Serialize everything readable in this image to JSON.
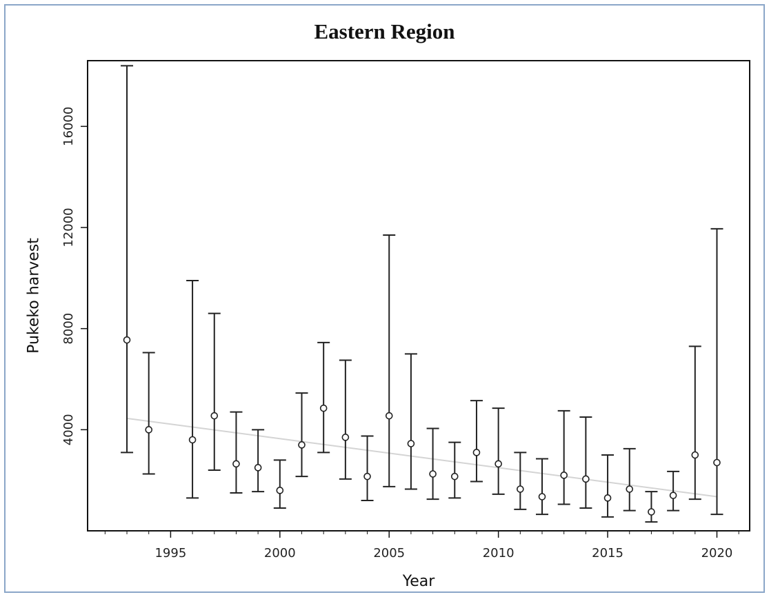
{
  "chart_data": {
    "type": "scatter",
    "title": "Eastern Region",
    "xlabel": "Year",
    "ylabel": "Pukeko harvest",
    "xlim": [
      1991.2,
      2021.5
    ],
    "ylim": [
      0,
      18600
    ],
    "x_ticks": [
      1995,
      2000,
      2005,
      2010,
      2015,
      2020
    ],
    "x_tick_labels": [
      "1995",
      "2000",
      "2005",
      "2010",
      "2015",
      "2020"
    ],
    "y_ticks": [
      4000,
      8000,
      12000,
      16000
    ],
    "y_tick_labels": [
      "4000",
      "8000",
      "12000",
      "16000"
    ],
    "grid": false,
    "series": [
      {
        "points": [
          {
            "x": 1993,
            "y": 7550,
            "low": 3100,
            "high": 18400
          },
          {
            "x": 1994,
            "y": 4000,
            "low": 2250,
            "high": 7050
          },
          {
            "x": 1996,
            "y": 3600,
            "low": 1300,
            "high": 9900
          },
          {
            "x": 1997,
            "y": 4550,
            "low": 2400,
            "high": 8600
          },
          {
            "x": 1998,
            "y": 2650,
            "low": 1500,
            "high": 4700
          },
          {
            "x": 1999,
            "y": 2500,
            "low": 1550,
            "high": 4000
          },
          {
            "x": 2000,
            "y": 1600,
            "low": 900,
            "high": 2800
          },
          {
            "x": 2001,
            "y": 3400,
            "low": 2150,
            "high": 5450
          },
          {
            "x": 2002,
            "y": 4850,
            "low": 3100,
            "high": 7450
          },
          {
            "x": 2003,
            "y": 3700,
            "low": 2050,
            "high": 6750
          },
          {
            "x": 2004,
            "y": 2150,
            "low": 1200,
            "high": 3750
          },
          {
            "x": 2005,
            "y": 4550,
            "low": 1750,
            "high": 11700
          },
          {
            "x": 2006,
            "y": 3450,
            "low": 1650,
            "high": 7000
          },
          {
            "x": 2007,
            "y": 2250,
            "low": 1250,
            "high": 4050
          },
          {
            "x": 2008,
            "y": 2150,
            "low": 1300,
            "high": 3500
          },
          {
            "x": 2009,
            "y": 3100,
            "low": 1950,
            "high": 5150
          },
          {
            "x": 2010,
            "y": 2650,
            "low": 1450,
            "high": 4850
          },
          {
            "x": 2011,
            "y": 1650,
            "low": 850,
            "high": 3100
          },
          {
            "x": 2012,
            "y": 1350,
            "low": 650,
            "high": 2850
          },
          {
            "x": 2013,
            "y": 2200,
            "low": 1050,
            "high": 4750
          },
          {
            "x": 2014,
            "y": 2050,
            "low": 900,
            "high": 4500
          },
          {
            "x": 2015,
            "y": 1300,
            "low": 550,
            "high": 3000
          },
          {
            "x": 2016,
            "y": 1650,
            "low": 800,
            "high": 3250
          },
          {
            "x": 2017,
            "y": 750,
            "low": 350,
            "high": 1550
          },
          {
            "x": 2018,
            "y": 1400,
            "low": 800,
            "high": 2350
          },
          {
            "x": 2019,
            "y": 3000,
            "low": 1250,
            "high": 7300
          },
          {
            "x": 2020,
            "y": 2700,
            "low": 650,
            "high": 11950
          }
        ]
      }
    ],
    "trend_line": {
      "x": [
        1993,
        2020
      ],
      "y": [
        4450,
        1350
      ],
      "color": "#d4d4d4"
    },
    "colors": {
      "marker": "#222222",
      "error_bar": "#222222",
      "axis": "#111111"
    }
  }
}
